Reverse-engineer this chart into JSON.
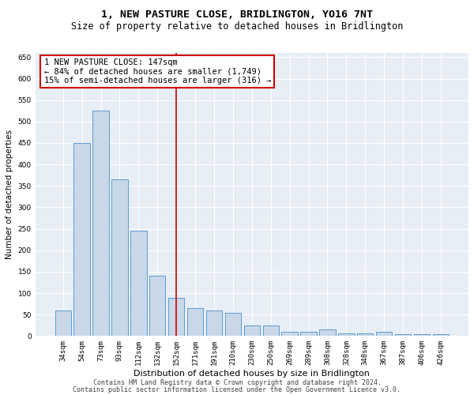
{
  "title": "1, NEW PASTURE CLOSE, BRIDLINGTON, YO16 7NT",
  "subtitle": "Size of property relative to detached houses in Bridlington",
  "xlabel": "Distribution of detached houses by size in Bridlington",
  "ylabel": "Number of detached properties",
  "categories": [
    "34sqm",
    "54sqm",
    "73sqm",
    "93sqm",
    "112sqm",
    "132sqm",
    "152sqm",
    "171sqm",
    "191sqm",
    "210sqm",
    "230sqm",
    "250sqm",
    "269sqm",
    "289sqm",
    "308sqm",
    "328sqm",
    "348sqm",
    "367sqm",
    "387sqm",
    "406sqm",
    "426sqm"
  ],
  "values": [
    60,
    450,
    525,
    365,
    245,
    140,
    90,
    65,
    60,
    55,
    25,
    25,
    10,
    10,
    15,
    7,
    7,
    10,
    5,
    5,
    5
  ],
  "bar_color": "#c8d8e8",
  "bar_edge_color": "#5b9bd5",
  "bar_edge_width": 0.7,
  "reference_line_color": "#cc0000",
  "annotation_box_text": "1 NEW PASTURE CLOSE: 147sqm\n← 84% of detached houses are smaller (1,749)\n15% of semi-detached houses are larger (316) →",
  "annotation_box_color": "#cc0000",
  "ylim": [
    0,
    660
  ],
  "yticks": [
    0,
    50,
    100,
    150,
    200,
    250,
    300,
    350,
    400,
    450,
    500,
    550,
    600,
    650
  ],
  "bg_color": "#e8eef5",
  "grid_color": "#ffffff",
  "footer1": "Contains HM Land Registry data © Crown copyright and database right 2024.",
  "footer2": "Contains public sector information licensed under the Open Government Licence v3.0.",
  "title_fontsize": 9.5,
  "subtitle_fontsize": 8.5,
  "xlabel_fontsize": 8,
  "ylabel_fontsize": 7.5,
  "tick_fontsize": 6.5,
  "annotation_fontsize": 7.5,
  "footer_fontsize": 6.0
}
